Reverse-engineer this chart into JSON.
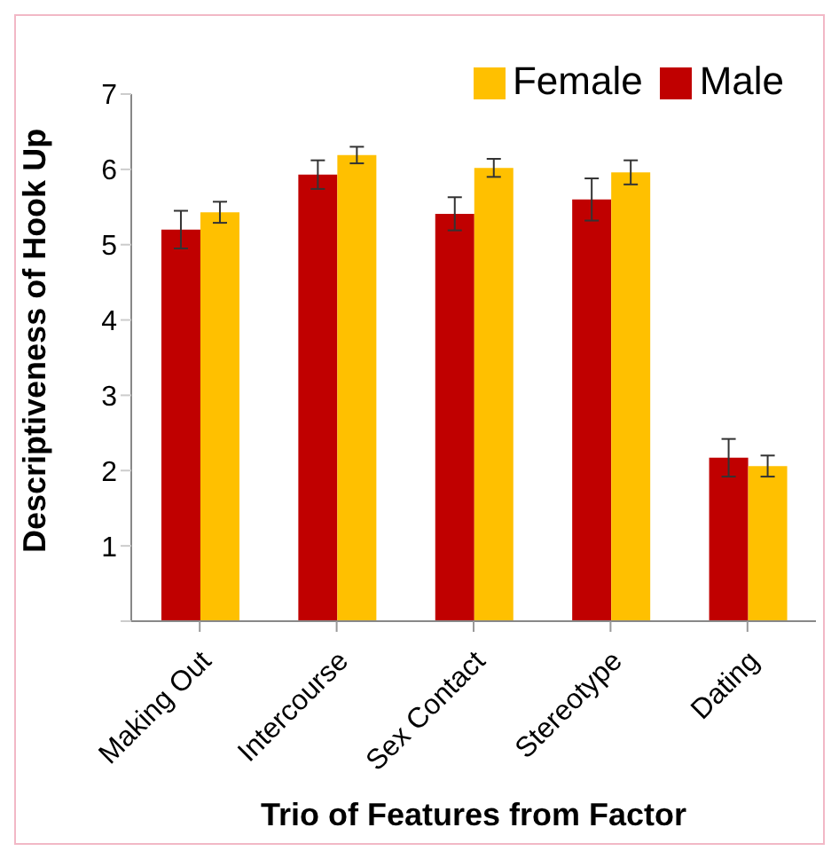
{
  "chart_data": {
    "type": "bar",
    "xlabel": "Trio of Features from Factor",
    "ylabel": "Descriptiveness of Hook Up",
    "categories": [
      "Making Out",
      "Intercourse",
      "Sex Contact",
      "Stereotype",
      "Dating"
    ],
    "series": [
      {
        "name": "Male",
        "color": "#c00000",
        "values": [
          5.2,
          5.93,
          5.41,
          5.6,
          2.17
        ],
        "errors": [
          0.25,
          0.19,
          0.22,
          0.28,
          0.25
        ]
      },
      {
        "name": "Female",
        "color": "#ffc000",
        "values": [
          5.43,
          6.19,
          6.02,
          5.96,
          2.06
        ],
        "errors": [
          0.14,
          0.11,
          0.12,
          0.16,
          0.14
        ]
      }
    ],
    "ylim": [
      0,
      7
    ],
    "yticks": [
      {
        "value": 0,
        "label": null
      },
      1,
      2,
      3,
      4,
      5,
      6,
      7
    ],
    "grid": false,
    "legend": "top right"
  }
}
